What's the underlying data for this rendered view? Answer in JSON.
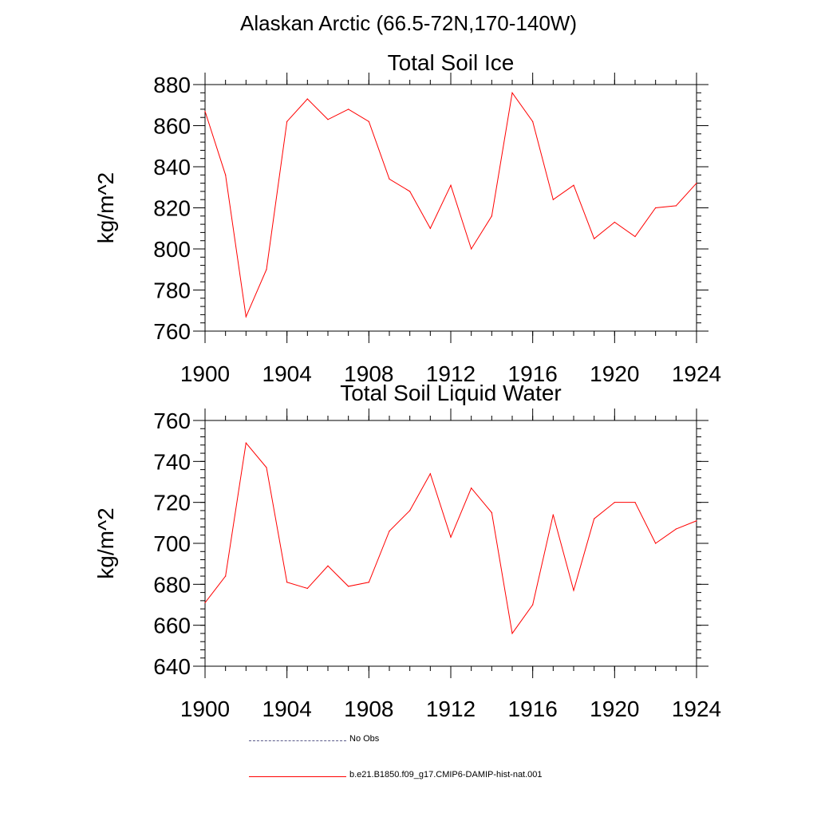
{
  "figure": {
    "main_title": "Alaskan Arctic (66.5-72N,170-140W)",
    "line_color": "#ff0000",
    "no_obs_color": "#5a5a8a"
  },
  "chart_data": [
    {
      "type": "line",
      "title": "Total Soil Ice",
      "xlabel": "",
      "ylabel": "kg/m^2",
      "xlim": [
        1900,
        1924
      ],
      "ylim": [
        760,
        880
      ],
      "xticks": [
        1900,
        1904,
        1908,
        1912,
        1916,
        1920,
        1924
      ],
      "yticks": [
        760,
        780,
        800,
        820,
        840,
        860,
        880
      ],
      "series": [
        {
          "name": "b.e21.B1850.f09_g17.CMIP6-DAMIP-hist-nat.001",
          "x": [
            1900,
            1901,
            1902,
            1903,
            1904,
            1905,
            1906,
            1907,
            1908,
            1909,
            1910,
            1911,
            1912,
            1913,
            1914,
            1915,
            1916,
            1917,
            1918,
            1919,
            1920,
            1921,
            1922,
            1923,
            1924
          ],
          "values": [
            867,
            836,
            767,
            790,
            862,
            873,
            863,
            868,
            862,
            834,
            828,
            810,
            831,
            800,
            816,
            876,
            862,
            824,
            831,
            805,
            813,
            806,
            820,
            821,
            832
          ]
        }
      ]
    },
    {
      "type": "line",
      "title": "Total Soil Liquid Water",
      "xlabel": "",
      "ylabel": "kg/m^2",
      "xlim": [
        1900,
        1924
      ],
      "ylim": [
        640,
        760
      ],
      "xticks": [
        1900,
        1904,
        1908,
        1912,
        1916,
        1920,
        1924
      ],
      "yticks": [
        640,
        660,
        680,
        700,
        720,
        740,
        760
      ],
      "series": [
        {
          "name": "b.e21.B1850.f09_g17.CMIP6-DAMIP-hist-nat.001",
          "x": [
            1900,
            1901,
            1902,
            1903,
            1904,
            1905,
            1906,
            1907,
            1908,
            1909,
            1910,
            1911,
            1912,
            1913,
            1914,
            1915,
            1916,
            1917,
            1918,
            1919,
            1920,
            1921,
            1922,
            1923,
            1924
          ],
          "values": [
            671,
            684,
            749,
            737,
            681,
            678,
            689,
            679,
            681,
            706,
            716,
            734,
            703,
            727,
            715,
            656,
            670,
            714,
            677,
            712,
            720,
            720,
            700,
            707,
            711
          ]
        }
      ]
    }
  ],
  "legend": {
    "items": [
      {
        "label": "No Obs",
        "style": "dashed"
      },
      {
        "label": "b.e21.B1850.f09_g17.CMIP6-DAMIP-hist-nat.001",
        "style": "solid"
      }
    ]
  }
}
